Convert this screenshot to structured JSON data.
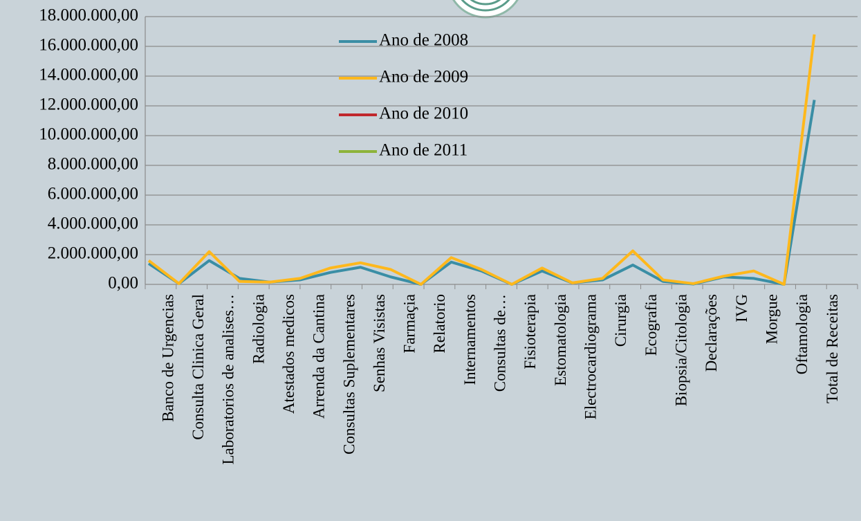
{
  "chart_data": {
    "type": "line",
    "categories": [
      "Banco de Urgencias",
      "Consulta Clinica Geral",
      "Laboratorios de analises…",
      "Radiologia",
      "Atestados medicos",
      "Arrenda da Cantina",
      "Consultas Suplementares",
      "Senhas Visistas",
      "Farmaçia",
      "Relatorio",
      "Internamentos",
      "Consultas de…",
      "Fisioterapia",
      "Estomatologia",
      "Electrocardiograma",
      "Cirurgia",
      "Ecografia",
      "Biopsia/Citologia",
      "Declarações",
      "IVG",
      "Morgue",
      "Oftamologia",
      "Total de Receitas"
    ],
    "series": [
      {
        "name": "Ano de 2008",
        "color": "#3a8ea5",
        "values": [
          1400000,
          50000,
          1600000,
          400000,
          150000,
          300000,
          800000,
          1150000,
          500000,
          0,
          1500000,
          900000,
          0,
          900000,
          100000,
          300000,
          1300000,
          200000,
          20000,
          500000,
          400000,
          0,
          12400000
        ]
      },
      {
        "name": "Ano de 2009",
        "color": "#ffb81c",
        "values": [
          1600000,
          50000,
          2200000,
          200000,
          150000,
          400000,
          1100000,
          1450000,
          1000000,
          0,
          1800000,
          1000000,
          0,
          1100000,
          100000,
          400000,
          2250000,
          300000,
          50000,
          550000,
          900000,
          0,
          16800000
        ]
      },
      {
        "name": "Ano de 2010",
        "color": "#c0282d",
        "values": [
          null,
          null,
          null,
          null,
          null,
          null,
          null,
          null,
          null,
          null,
          null,
          null,
          null,
          null,
          null,
          null,
          null,
          null,
          null,
          null,
          null,
          null,
          null
        ]
      },
      {
        "name": "Ano de 2011",
        "color": "#8db33a",
        "values": [
          null,
          null,
          null,
          null,
          null,
          null,
          null,
          null,
          null,
          null,
          null,
          null,
          null,
          null,
          null,
          null,
          null,
          null,
          null,
          null,
          null,
          null,
          null
        ]
      }
    ],
    "ylim": [
      0,
      18000000
    ],
    "yticks": [
      {
        "value": 0,
        "label": "0,00"
      },
      {
        "value": 2000000,
        "label": "2.000.000,00"
      },
      {
        "value": 4000000,
        "label": "4.000.000,00"
      },
      {
        "value": 6000000,
        "label": "6.000.000,00"
      },
      {
        "value": 8000000,
        "label": "8.000.000,00"
      },
      {
        "value": 10000000,
        "label": "10.000.000,00"
      },
      {
        "value": 12000000,
        "label": "12.000.000,00"
      },
      {
        "value": 14000000,
        "label": "14.000.000,00"
      },
      {
        "value": 16000000,
        "label": "16.000.000,00"
      },
      {
        "value": 18000000,
        "label": "18.000.000,00"
      }
    ],
    "grid": true,
    "legend": "top"
  }
}
